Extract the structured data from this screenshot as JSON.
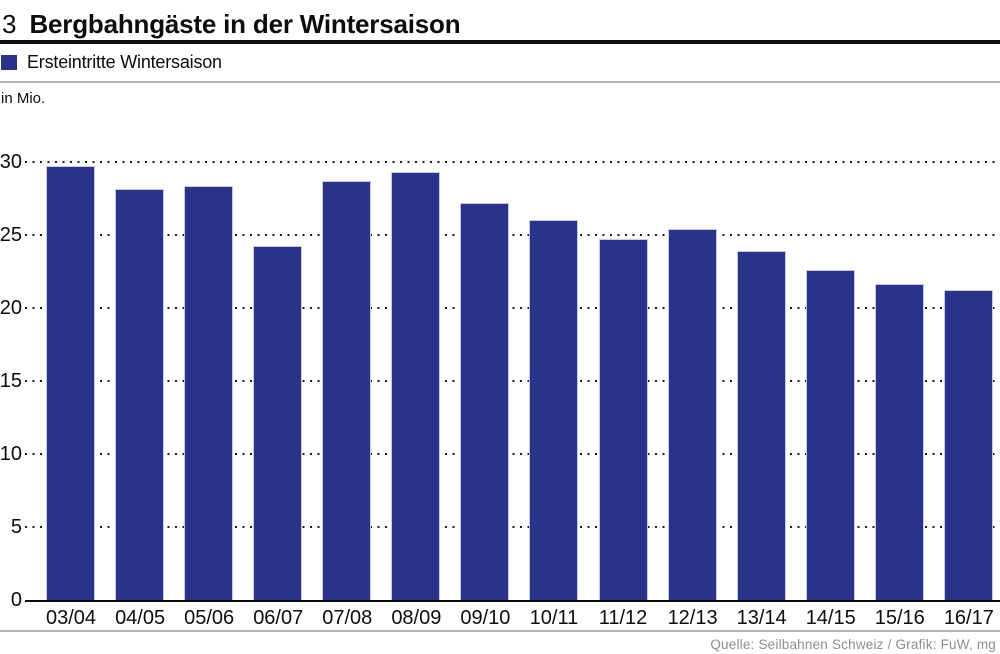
{
  "header": {
    "figure_number": "3",
    "title": "Bergbahngäste in der Wintersaison"
  },
  "legend": {
    "label": "Ersteintritte Wintersaison",
    "swatch_color": "#2a3388"
  },
  "unit_label": "in Mio.",
  "source": "Quelle: Seilbahnen Schweiz / Grafik: FuW, mg",
  "chart_data": {
    "type": "bar",
    "title": "Bergbahngäste in der Wintersaison",
    "series_name": "Ersteintritte Wintersaison",
    "xlabel": "",
    "ylabel": "in Mio.",
    "categories": [
      "03/04",
      "04/05",
      "05/06",
      "06/07",
      "07/08",
      "08/09",
      "09/10",
      "10/11",
      "11/12",
      "12/13",
      "13/14",
      "14/15",
      "15/16",
      "16/17"
    ],
    "values": [
      29.7,
      28.1,
      28.3,
      24.2,
      28.7,
      29.3,
      27.2,
      26.0,
      24.7,
      25.4,
      23.9,
      22.6,
      21.6,
      21.2
    ],
    "yticks": [
      0,
      5,
      10,
      15,
      20,
      25,
      30
    ],
    "ylim": [
      0,
      31
    ],
    "grid": "dotted-horizontal",
    "legend_position": "top-left",
    "bar_color": "#2a3388",
    "bar_border_color": "#c7cade"
  }
}
